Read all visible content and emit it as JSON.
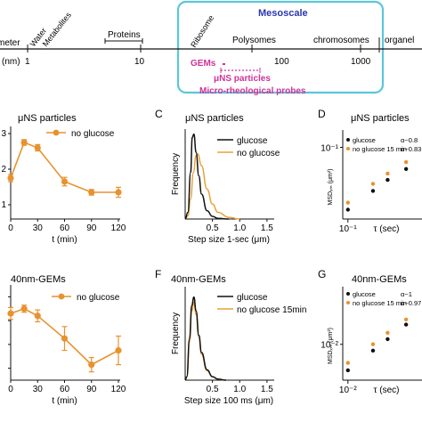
{
  "scale_bar": {
    "start_label": "meter",
    "unit_label": "(nm)",
    "tick_labels": [
      "1",
      "10",
      "100",
      "1000"
    ],
    "categories": [
      "Water",
      "Metabolites",
      "Proteins",
      "Ribosome",
      "Polysomes",
      "chromosomes",
      "organel"
    ],
    "mesoscale_label": "Mesoscale",
    "probes": {
      "gems": "GEMs",
      "uns": "μNS particles",
      "micro": "Micro-rheological probes"
    },
    "colors": {
      "mesoscale": "#2a36b0",
      "box": "#5cc6d8",
      "probe": "#d0329a"
    }
  },
  "panels": {
    "A_title": "μNS particles",
    "C_letter": "C",
    "C_title": "μNS particles",
    "D_letter": "D",
    "D_title": "μNS particles",
    "E_title": "40nm-GEMs",
    "F_letter": "F",
    "F_title": "40nm-GEMs",
    "G_letter": "G",
    "G_title": "40nm-GEMs"
  },
  "chart_data": [
    {
      "id": "top-left",
      "type": "line",
      "xlabel": "t (min)",
      "ylabel": "",
      "x": [
        0,
        15,
        30,
        60,
        90,
        120
      ],
      "xticks": [
        "0",
        "30",
        "60",
        "90",
        "120"
      ],
      "yticks": [
        "1",
        "2",
        "3"
      ],
      "ylim": [
        0.6,
        3.2
      ],
      "series": [
        {
          "name": "no glucose",
          "values": [
            1.75,
            2.75,
            2.6,
            1.65,
            1.35,
            1.35
          ],
          "err": [
            0.1,
            0.08,
            0.09,
            0.12,
            0.08,
            0.14
          ],
          "color": "#e8922e"
        }
      ]
    },
    {
      "id": "top-middle",
      "type": "line",
      "xlabel": "Step size 1-sec (μm)",
      "ylabel": "Frequency",
      "xticks": [
        "0.5",
        "1.0",
        "1.5"
      ],
      "xlim": [
        0,
        1.6
      ],
      "series": [
        {
          "name": "glucose",
          "color": "#111111",
          "x": [
            0.05,
            0.1,
            0.13,
            0.16,
            0.2,
            0.25,
            0.3,
            0.4,
            0.5,
            0.6,
            0.8
          ],
          "values": [
            0.02,
            0.14,
            0.245,
            0.255,
            0.2,
            0.13,
            0.075,
            0.025,
            0.008,
            0.002,
            0
          ]
        },
        {
          "name": "no glucose",
          "color": "#e8a23a",
          "x": [
            0.05,
            0.1,
            0.15,
            0.2,
            0.23,
            0.3,
            0.4,
            0.5,
            0.6,
            0.8,
            1.0
          ],
          "values": [
            0.01,
            0.06,
            0.14,
            0.19,
            0.195,
            0.16,
            0.09,
            0.045,
            0.02,
            0.005,
            0
          ]
        }
      ]
    },
    {
      "id": "top-right",
      "type": "scatter",
      "xlabel": "τ (sec)",
      "ylabel": "MSDₓₘ (μm²)",
      "xticks": [
        "10⁻¹"
      ],
      "yticks": [
        "10⁻¹"
      ],
      "series": [
        {
          "name": "glucose",
          "alpha_label": "α~0.8",
          "color": "#111111",
          "x": [
            0.1,
            0.2,
            0.3,
            0.5
          ],
          "values": [
            0.01,
            0.02,
            0.03,
            0.045
          ]
        },
        {
          "name": "no glucose 15 min",
          "alpha_label": "α~0.83",
          "color": "#e8922e",
          "x": [
            0.1,
            0.2,
            0.3,
            0.5
          ],
          "values": [
            0.013,
            0.026,
            0.038,
            0.058
          ]
        }
      ]
    },
    {
      "id": "bottom-left",
      "type": "line",
      "xlabel": "t (min)",
      "ylabel": "",
      "x": [
        0,
        15,
        30,
        60,
        90,
        120
      ],
      "xticks": [
        "0",
        "30",
        "60",
        "90",
        "120"
      ],
      "ylim": [
        0.2,
        1.0
      ],
      "series": [
        {
          "name": "no glucose",
          "values": [
            0.76,
            0.8,
            0.74,
            0.55,
            0.33,
            0.45
          ],
          "err": [
            0.05,
            0.03,
            0.05,
            0.1,
            0.06,
            0.12
          ],
          "color": "#e8922e"
        }
      ]
    },
    {
      "id": "bottom-middle",
      "type": "line",
      "xlabel": "Step size 100 ms (μm)",
      "ylabel": "Frequency",
      "xticks": [
        "0.5",
        "1.0",
        "1.5"
      ],
      "xlim": [
        0,
        1.6
      ],
      "series": [
        {
          "name": "glucose",
          "color": "#111111",
          "x": [
            0.03,
            0.08,
            0.12,
            0.16,
            0.2,
            0.25,
            0.3,
            0.4,
            0.5,
            0.6,
            0.75
          ],
          "values": [
            0.01,
            0.12,
            0.215,
            0.24,
            0.2,
            0.13,
            0.08,
            0.03,
            0.01,
            0.003,
            0
          ]
        },
        {
          "name": "no glucose 15min",
          "color": "#e8a23a",
          "x": [
            0.03,
            0.08,
            0.12,
            0.16,
            0.2,
            0.25,
            0.3,
            0.4,
            0.5,
            0.6,
            0.75
          ],
          "values": [
            0.01,
            0.11,
            0.2,
            0.225,
            0.19,
            0.125,
            0.075,
            0.028,
            0.01,
            0.003,
            0
          ]
        }
      ]
    },
    {
      "id": "bottom-right",
      "type": "scatter",
      "xlabel": "τ (sec)",
      "ylabel": "MSDₓₘ (μm²)",
      "xticks": [
        "10⁻²"
      ],
      "yticks": [
        "10⁻²"
      ],
      "series": [
        {
          "name": "glucose",
          "alpha_label": "α~1",
          "color": "#111111",
          "x": [
            0.01,
            0.02,
            0.03,
            0.05
          ],
          "values": [
            0.004,
            0.008,
            0.012,
            0.02
          ]
        },
        {
          "name": "no glucose 15 min",
          "alpha_label": "α~0.97",
          "color": "#e8922e",
          "x": [
            0.01,
            0.02,
            0.03,
            0.05
          ],
          "values": [
            0.0052,
            0.01,
            0.015,
            0.024
          ]
        }
      ]
    }
  ]
}
